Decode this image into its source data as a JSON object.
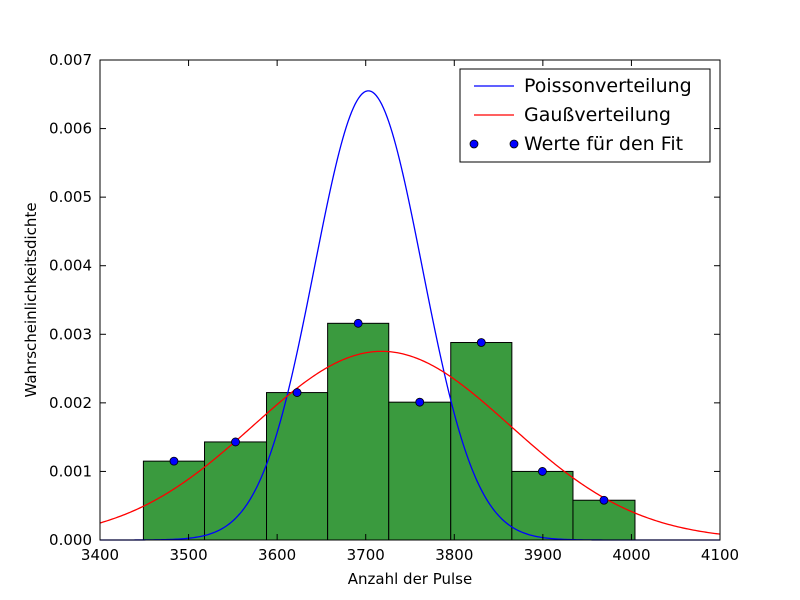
{
  "chart_data": {
    "type": "bar",
    "xlabel": "Anzahl der Pulse",
    "ylabel": "Wahrscheinlichkeitsdichte",
    "xlim": [
      3400,
      4100
    ],
    "ylim": [
      0,
      0.007
    ],
    "xticks": [
      "3400",
      "3500",
      "3600",
      "3700",
      "3800",
      "3900",
      "4000",
      "4100"
    ],
    "yticks": [
      "0.000",
      "0.001",
      "0.002",
      "0.003",
      "0.004",
      "0.005",
      "0.006",
      "0.007"
    ],
    "grid": false,
    "legend_position": "top-right",
    "histogram": {
      "edges": [
        3449,
        3518,
        3588,
        3657,
        3726,
        3796,
        3865,
        3934,
        4004
      ],
      "values": [
        0.00115,
        0.00143,
        0.00215,
        0.00316,
        0.00201,
        0.00288,
        0.001,
        0.00058
      ],
      "color": "#3a9a3e"
    },
    "series": [
      {
        "name": "Poissonverteilung",
        "kind": "line",
        "color": "#0000ff",
        "mean": 3703,
        "sigma": 60.9
      },
      {
        "name": "Gaußverteilung",
        "kind": "line",
        "color": "#ff0000",
        "mean": 3718,
        "sigma": 145
      },
      {
        "name": "Werte für den Fit",
        "kind": "scatter",
        "color": "#0000ff",
        "x": [
          3483.5,
          3553,
          3622.5,
          3691.5,
          3761,
          3830.5,
          3899.5,
          3969
        ],
        "y": [
          0.00115,
          0.00143,
          0.00215,
          0.00316,
          0.00201,
          0.00288,
          0.001,
          0.00058
        ]
      }
    ]
  }
}
